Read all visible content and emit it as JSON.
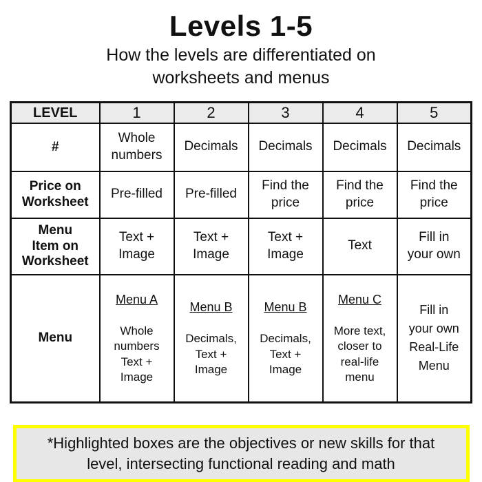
{
  "page": {
    "title": "Levels 1-5",
    "subtitle": "How the levels are differentiated on\nworksheets and menus"
  },
  "table": {
    "header": {
      "label": "LEVEL",
      "levels": [
        "1",
        "2",
        "3",
        "4",
        "5"
      ]
    },
    "rows": [
      {
        "label": "#",
        "cells": [
          {
            "text": "Whole\nnumbers",
            "highlight": true
          },
          {
            "text": "Decimals",
            "highlight": true
          },
          {
            "text": "Decimals",
            "highlight": false
          },
          {
            "text": "Decimals",
            "highlight": false
          },
          {
            "text": "Decimals",
            "highlight": false
          }
        ]
      },
      {
        "label": "Price on\nWorksheet",
        "cells": [
          {
            "text": "Pre-filled",
            "highlight": false
          },
          {
            "text": "Pre-filled",
            "highlight": false
          },
          {
            "text": "Find the\nprice",
            "highlight": true
          },
          {
            "text": "Find the\nprice",
            "highlight": false
          },
          {
            "text": "Find the\nprice",
            "highlight": false
          }
        ]
      },
      {
        "label": "Menu\nItem on\nWorksheet",
        "cells": [
          {
            "text": "Text +\nImage",
            "highlight": false
          },
          {
            "text": "Text +\nImage",
            "highlight": false
          },
          {
            "text": "Text +\nImage",
            "highlight": false
          },
          {
            "text": "Text",
            "highlight": true
          },
          {
            "text": "Fill in\nyour own",
            "highlight": false
          }
        ]
      },
      {
        "label": "Menu",
        "cells": [
          {
            "title": "Menu A",
            "text": "Whole\nnumbers\nText +\nImage",
            "highlight": false
          },
          {
            "title": "Menu B",
            "text": "Decimals,\nText +\nImage",
            "highlight": false
          },
          {
            "title": "Menu B",
            "text": "Decimals,\nText +\nImage",
            "highlight": false
          },
          {
            "title": "Menu C",
            "text": "More text,\ncloser to\nreal-life\nmenu",
            "highlight": false
          },
          {
            "text": "Fill in\nyour own\nReal-Life\nMenu",
            "highlight": true
          }
        ]
      }
    ]
  },
  "note": {
    "text": "*Highlighted boxes are the objectives or new skills for that\nlevel, intersecting functional reading and math"
  },
  "colors": {
    "highlight": "#FFF200",
    "header_bg": "#EBEBEB",
    "note_bg": "#E7E7E7",
    "note_border": "#FFFF00",
    "ink": "#111111"
  }
}
